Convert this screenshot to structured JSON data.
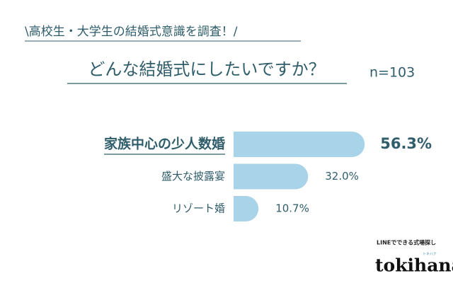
{
  "chart_data": {
    "type": "bar",
    "orientation": "horizontal",
    "title": "\\高校生・大学生の結婚式意識を調査！/",
    "subtitle": "どんな結婚式にしたいですか？",
    "sample_size": "n=103",
    "categories": [
      "家族中心の少人数婚",
      "盛大な披露宴",
      "リゾート婚"
    ],
    "values": [
      56.3,
      32.0,
      10.7
    ],
    "value_labels": [
      "56.3%",
      "32.0%",
      "10.7%"
    ],
    "color": "#a9d3e8"
  },
  "logo": {
    "tagline": "LINEでできる式場探し",
    "name": "tokihana",
    "kana": "トキハナ"
  }
}
